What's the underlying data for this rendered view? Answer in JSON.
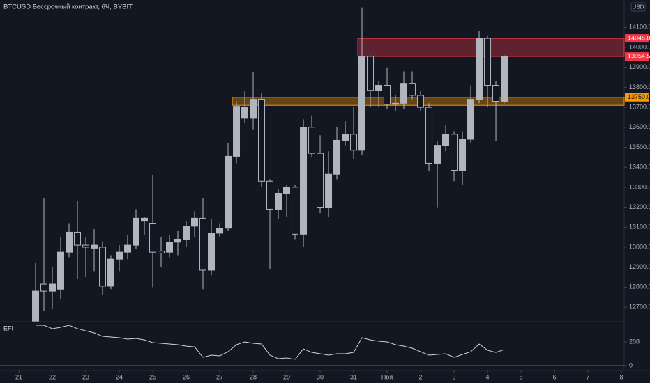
{
  "header": {
    "title": "BTCUSD Бессрочный контракт, 6Ч, BYBIT",
    "currency": "USD"
  },
  "chart_data": [
    {
      "type": "candlestick",
      "x": [
        0,
        1,
        2,
        3,
        4,
        5,
        6,
        7,
        8,
        9,
        10,
        11,
        12,
        13,
        14,
        15,
        16,
        17,
        18,
        19,
        20,
        21,
        22,
        23,
        24,
        25,
        26,
        27,
        28,
        29,
        30,
        31,
        32,
        33,
        34,
        35,
        36,
        37,
        38,
        39,
        40,
        41,
        42,
        43,
        44,
        45,
        46,
        47,
        48,
        49,
        50,
        51,
        52,
        53,
        54,
        55,
        56
      ],
      "open": [
        12630,
        12815,
        12780,
        12790,
        12975,
        13075,
        13010,
        12995,
        13000,
        12805,
        12940,
        12975,
        13010,
        13130,
        13120,
        12980,
        12975,
        13025,
        13040,
        13105,
        13145,
        12885,
        13070,
        13095,
        13455,
        13645,
        13645,
        13740,
        13330,
        13190,
        13270,
        13300,
        13065,
        13600,
        13470,
        13200,
        13365,
        13535,
        13565,
        13485,
        13955,
        13785,
        13810,
        13715,
        13720,
        13820,
        13760,
        13700,
        13420,
        13510,
        13565,
        13385,
        13540,
        13740,
        14045,
        13810,
        13730
      ],
      "high": [
        12920,
        13245,
        12900,
        13050,
        13120,
        13230,
        13050,
        13090,
        13030,
        12960,
        13010,
        13060,
        13190,
        13150,
        13360,
        13050,
        13060,
        13080,
        13130,
        13180,
        13245,
        13140,
        13120,
        13520,
        13730,
        13780,
        13875,
        13770,
        13340,
        13290,
        13310,
        13310,
        13640,
        13660,
        13560,
        13480,
        13600,
        13630,
        13700,
        14200,
        13960,
        13830,
        13900,
        13760,
        13880,
        13880,
        13780,
        13720,
        13530,
        13610,
        13580,
        13580,
        13810,
        14080,
        14060,
        13830,
        13960
      ],
      "low": [
        12630,
        12680,
        12690,
        12740,
        12950,
        12840,
        12850,
        12880,
        12760,
        12790,
        12880,
        12940,
        12990,
        13060,
        12800,
        12900,
        12950,
        12960,
        13000,
        13050,
        12790,
        12860,
        13050,
        13080,
        13420,
        13620,
        13590,
        13300,
        12890,
        13140,
        13150,
        13040,
        13000,
        13450,
        13170,
        13150,
        13340,
        13510,
        13440,
        13460,
        13700,
        13700,
        13690,
        13680,
        13690,
        13740,
        13680,
        13380,
        13200,
        13480,
        13330,
        13310,
        13520,
        13720,
        13700,
        13530,
        13720
      ],
      "close": [
        12780,
        12780,
        12815,
        12975,
        13075,
        13010,
        13000,
        13010,
        12805,
        12940,
        12975,
        13010,
        13145,
        13145,
        12975,
        12970,
        13025,
        13040,
        13105,
        13145,
        12885,
        13070,
        13095,
        13455,
        13705,
        13700,
        13740,
        13330,
        13190,
        13270,
        13300,
        13065,
        13600,
        13470,
        13200,
        13365,
        13535,
        13565,
        13485,
        13955,
        13785,
        13810,
        13715,
        13720,
        13820,
        13760,
        13700,
        13420,
        13510,
        13565,
        13385,
        13540,
        13740,
        14045,
        13810,
        13730,
        13955
      ],
      "up_color": "#b2b5be",
      "down_color": "#131722",
      "xlim": [
        -4.25,
        70.33
      ],
      "xticks": [
        {
          "value": -2,
          "label": "21"
        },
        {
          "value": 2,
          "label": "22"
        },
        {
          "value": 6,
          "label": "23"
        },
        {
          "value": 10,
          "label": "24"
        },
        {
          "value": 14,
          "label": "25"
        },
        {
          "value": 18,
          "label": "26"
        },
        {
          "value": 22,
          "label": "27"
        },
        {
          "value": 26,
          "label": "28"
        },
        {
          "value": 30,
          "label": "29"
        },
        {
          "value": 34,
          "label": "30"
        },
        {
          "value": 38,
          "label": "31"
        },
        {
          "value": 42,
          "label": "Ноя"
        },
        {
          "value": 46,
          "label": "2"
        },
        {
          "value": 50,
          "label": "3"
        },
        {
          "value": 54,
          "label": "4"
        },
        {
          "value": 58,
          "label": "5"
        },
        {
          "value": 62,
          "label": "6"
        },
        {
          "value": 66,
          "label": "7"
        },
        {
          "value": 70,
          "label": "8"
        }
      ],
      "ylim": [
        12627,
        14237
      ],
      "yticks": [
        {
          "value": 12700,
          "label": "12700.0"
        },
        {
          "value": 12800,
          "label": "12800.0"
        },
        {
          "value": 12900,
          "label": "12900.0"
        },
        {
          "value": 13000,
          "label": "13000.0"
        },
        {
          "value": 13100,
          "label": "13100.0"
        },
        {
          "value": 13200,
          "label": "13200.0"
        },
        {
          "value": 13300,
          "label": "13300.0"
        },
        {
          "value": 13400,
          "label": "13400.0"
        },
        {
          "value": 13500,
          "label": "13500.0"
        },
        {
          "value": 13600,
          "label": "13600.0"
        },
        {
          "value": 13700,
          "label": "13700.0"
        },
        {
          "value": 13800,
          "label": "13800.0"
        },
        {
          "value": 13900,
          "label": "13900.0"
        },
        {
          "value": 14000,
          "label": "14000.0"
        },
        {
          "value": 14100,
          "label": "14100.0"
        }
      ],
      "zones": [
        {
          "low": 13954.5,
          "high": 14045,
          "start": 39,
          "color": "#f23645"
        },
        {
          "low": 13710,
          "high": 13750,
          "start": 24,
          "color": "#ff9800"
        }
      ],
      "price_labels": [
        {
          "value": 14045,
          "label": "14045.0",
          "color": "#f23645"
        },
        {
          "value": 13954.5,
          "label": "13954.5",
          "color": "#f23645"
        },
        {
          "value": 13750,
          "label": "13750.0",
          "color": "#ff9800"
        }
      ]
    },
    {
      "type": "line",
      "title": "EFI",
      "color": "#d1d4dc",
      "x": [
        0,
        1,
        2,
        3,
        4,
        5,
        6,
        7,
        8,
        9,
        10,
        11,
        12,
        13,
        14,
        15,
        16,
        17,
        18,
        19,
        20,
        21,
        22,
        23,
        24,
        25,
        26,
        27,
        28,
        29,
        30,
        31,
        32,
        33,
        34,
        35,
        36,
        37,
        38,
        39,
        40,
        41,
        42,
        43,
        44,
        45,
        46,
        47,
        48,
        49,
        50,
        51,
        52,
        53,
        54,
        55,
        56
      ],
      "values": [
        355,
        355,
        325,
        337,
        355,
        325,
        306,
        288,
        257,
        251,
        245,
        233,
        239,
        226,
        202,
        196,
        190,
        184,
        171,
        165,
        73,
        92,
        86,
        122,
        184,
        208,
        196,
        190,
        92,
        61,
        67,
        55,
        147,
        116,
        104,
        92,
        104,
        104,
        116,
        245,
        226,
        214,
        208,
        184,
        171,
        153,
        122,
        92,
        98,
        104,
        73,
        98,
        122,
        190,
        135,
        116,
        141
      ],
      "ylim": [
        -43,
        386
      ],
      "yticks": [
        0,
        208
      ]
    }
  ]
}
